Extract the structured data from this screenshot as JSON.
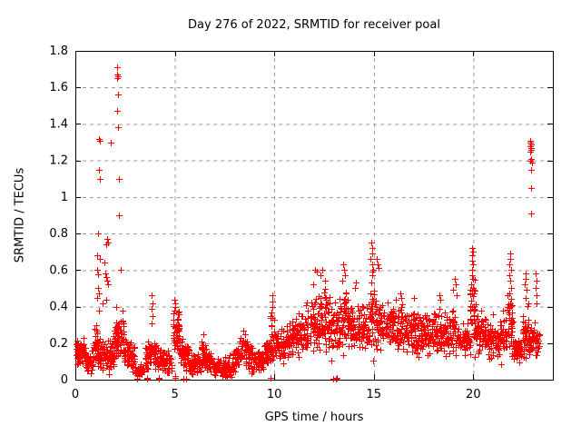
{
  "chart_data": {
    "type": "scatter",
    "title": "Day 276 of 2022, SRMTID for receiver poal",
    "xlabel": "GPS time / hours",
    "ylabel": "SRMTID / TECUs",
    "xlim": [
      0,
      24
    ],
    "ylim": [
      0,
      1.8
    ],
    "xticks": [
      0,
      5,
      10,
      15,
      20
    ],
    "xtick_labels": [
      "0",
      "5",
      "10",
      "15",
      "20"
    ],
    "yticks": [
      0,
      0.2,
      0.4,
      0.6,
      0.8,
      1.0,
      1.2,
      1.4,
      1.6,
      1.8
    ],
    "ytick_labels": [
      "0",
      "0.2",
      "0.4",
      "0.6",
      "0.8",
      "1",
      "1.2",
      "1.4",
      "1.6",
      "1.8"
    ],
    "grid": true,
    "grid_style": "dashed",
    "grid_color": "#9c9c9c",
    "frame_color": "#000000",
    "marker": "plus",
    "marker_color": "#ff0000",
    "seed": 1337,
    "bands_note": "dense scatter regions: [x_start, x_end, n_points, center_y_start, center_y_end, spread]",
    "bands": [
      [
        0.0,
        0.5,
        60,
        0.16,
        0.16,
        0.055
      ],
      [
        0.5,
        0.9,
        40,
        0.1,
        0.1,
        0.04
      ],
      [
        0.9,
        1.25,
        45,
        0.17,
        0.18,
        0.07
      ],
      [
        1.25,
        1.95,
        80,
        0.13,
        0.13,
        0.06
      ],
      [
        1.95,
        2.45,
        65,
        0.22,
        0.25,
        0.07
      ],
      [
        2.45,
        3.0,
        55,
        0.16,
        0.12,
        0.05
      ],
      [
        3.0,
        3.5,
        30,
        0.06,
        0.06,
        0.03
      ],
      [
        3.5,
        3.85,
        40,
        0.13,
        0.16,
        0.055
      ],
      [
        3.85,
        4.85,
        90,
        0.15,
        0.09,
        0.05
      ],
      [
        4.9,
        5.25,
        55,
        0.27,
        0.25,
        0.09
      ],
      [
        5.25,
        5.7,
        45,
        0.18,
        0.12,
        0.05
      ],
      [
        5.7,
        6.3,
        60,
        0.09,
        0.09,
        0.04
      ],
      [
        6.3,
        6.6,
        35,
        0.14,
        0.13,
        0.05
      ],
      [
        6.6,
        6.9,
        30,
        0.1,
        0.09,
        0.04
      ],
      [
        6.9,
        7.9,
        95,
        0.07,
        0.07,
        0.035
      ],
      [
        7.9,
        8.3,
        40,
        0.11,
        0.15,
        0.05
      ],
      [
        8.3,
        8.9,
        55,
        0.17,
        0.13,
        0.06
      ],
      [
        8.9,
        9.45,
        50,
        0.1,
        0.11,
        0.04
      ],
      [
        9.45,
        9.8,
        35,
        0.14,
        0.17,
        0.05
      ],
      [
        9.8,
        10.0,
        25,
        0.22,
        0.2,
        0.08
      ],
      [
        10.0,
        10.6,
        55,
        0.19,
        0.2,
        0.06
      ],
      [
        10.6,
        11.6,
        95,
        0.23,
        0.25,
        0.07
      ],
      [
        11.6,
        12.3,
        70,
        0.28,
        0.32,
        0.1
      ],
      [
        12.3,
        12.95,
        65,
        0.33,
        0.32,
        0.11
      ],
      [
        12.95,
        13.3,
        35,
        0.27,
        0.29,
        0.1
      ],
      [
        13.3,
        13.7,
        40,
        0.33,
        0.32,
        0.1
      ],
      [
        13.7,
        14.8,
        105,
        0.3,
        0.3,
        0.09
      ],
      [
        14.8,
        15.1,
        35,
        0.38,
        0.36,
        0.13
      ],
      [
        15.1,
        15.45,
        35,
        0.34,
        0.32,
        0.1
      ],
      [
        15.45,
        16.6,
        110,
        0.3,
        0.29,
        0.08
      ],
      [
        16.6,
        17.4,
        80,
        0.28,
        0.25,
        0.08
      ],
      [
        17.4,
        18.4,
        95,
        0.25,
        0.26,
        0.07
      ],
      [
        18.4,
        19.15,
        70,
        0.25,
        0.26,
        0.08
      ],
      [
        19.15,
        19.85,
        65,
        0.23,
        0.22,
        0.06
      ],
      [
        19.85,
        20.1,
        35,
        0.4,
        0.38,
        0.14
      ],
      [
        20.1,
        20.65,
        55,
        0.27,
        0.25,
        0.07
      ],
      [
        20.65,
        21.35,
        65,
        0.21,
        0.21,
        0.07
      ],
      [
        21.35,
        21.7,
        35,
        0.24,
        0.26,
        0.08
      ],
      [
        21.7,
        22.0,
        35,
        0.33,
        0.3,
        0.13
      ],
      [
        22.0,
        22.45,
        45,
        0.17,
        0.16,
        0.05
      ],
      [
        22.45,
        22.8,
        40,
        0.24,
        0.25,
        0.1
      ],
      [
        22.8,
        23.3,
        55,
        0.21,
        0.22,
        0.07
      ]
    ],
    "points_note": "notable individual points / spikes [x, y]",
    "points": [
      [
        2.12,
        1.71
      ],
      [
        2.1,
        1.67
      ],
      [
        2.14,
        1.66
      ],
      [
        2.12,
        1.65
      ],
      [
        2.13,
        1.56
      ],
      [
        2.12,
        1.47
      ],
      [
        2.13,
        1.38
      ],
      [
        1.18,
        1.32
      ],
      [
        1.24,
        1.31
      ],
      [
        1.8,
        1.3
      ],
      [
        1.2,
        1.15
      ],
      [
        1.21,
        1.1
      ],
      [
        2.2,
        1.1
      ],
      [
        2.2,
        0.9
      ],
      [
        1.13,
        0.8
      ],
      [
        1.58,
        0.77
      ],
      [
        1.62,
        0.75
      ],
      [
        1.55,
        0.74
      ],
      [
        1.1,
        0.68
      ],
      [
        1.25,
        0.66
      ],
      [
        1.45,
        0.64
      ],
      [
        2.28,
        0.6
      ],
      [
        1.09,
        0.6
      ],
      [
        1.12,
        0.575
      ],
      [
        1.5,
        0.58
      ],
      [
        1.55,
        0.56
      ],
      [
        1.6,
        0.54
      ],
      [
        1.65,
        0.52
      ],
      [
        1.15,
        0.5
      ],
      [
        1.2,
        0.47
      ],
      [
        1.08,
        0.45
      ],
      [
        1.55,
        0.44
      ],
      [
        1.35,
        0.42
      ],
      [
        2.05,
        0.4
      ],
      [
        1.18,
        0.38
      ],
      [
        2.35,
        0.38
      ],
      [
        3.85,
        0.46
      ],
      [
        3.86,
        0.42
      ],
      [
        3.84,
        0.39
      ],
      [
        3.87,
        0.35
      ],
      [
        3.85,
        0.31
      ],
      [
        4.98,
        0.44
      ],
      [
        5.0,
        0.42
      ],
      [
        5.03,
        0.4
      ],
      [
        4.96,
        0.38
      ],
      [
        5.15,
        0.37
      ],
      [
        6.45,
        0.25
      ],
      [
        8.45,
        0.27
      ],
      [
        8.55,
        0.25
      ],
      [
        9.9,
        0.46
      ],
      [
        9.88,
        0.43
      ],
      [
        9.92,
        0.4
      ],
      [
        9.87,
        0.37
      ],
      [
        9.9,
        0.34
      ],
      [
        12.05,
        0.6
      ],
      [
        12.15,
        0.59
      ],
      [
        12.3,
        0.57
      ],
      [
        12.4,
        0.6
      ],
      [
        11.95,
        0.52
      ],
      [
        12.55,
        0.54
      ],
      [
        13.45,
        0.63
      ],
      [
        13.5,
        0.6
      ],
      [
        13.55,
        0.57
      ],
      [
        13.4,
        0.54
      ],
      [
        14.1,
        0.53
      ],
      [
        14.05,
        0.5
      ],
      [
        14.88,
        0.75
      ],
      [
        14.9,
        0.72
      ],
      [
        14.93,
        0.69
      ],
      [
        14.85,
        0.66
      ],
      [
        14.9,
        0.63
      ],
      [
        14.95,
        0.6
      ],
      [
        14.9,
        0.57
      ],
      [
        14.87,
        0.53
      ],
      [
        15.15,
        0.66
      ],
      [
        15.2,
        0.63
      ],
      [
        15.25,
        0.61
      ],
      [
        16.1,
        0.44
      ],
      [
        16.35,
        0.47
      ],
      [
        16.4,
        0.45
      ],
      [
        17.0,
        0.45
      ],
      [
        18.3,
        0.46
      ],
      [
        18.35,
        0.44
      ],
      [
        19.05,
        0.55
      ],
      [
        19.1,
        0.52
      ],
      [
        19.0,
        0.49
      ],
      [
        19.15,
        0.46
      ],
      [
        19.95,
        0.72
      ],
      [
        19.97,
        0.7
      ],
      [
        19.93,
        0.68
      ],
      [
        19.95,
        0.65
      ],
      [
        19.98,
        0.63
      ],
      [
        19.92,
        0.6
      ],
      [
        19.95,
        0.57
      ],
      [
        19.97,
        0.55
      ],
      [
        19.9,
        0.52
      ],
      [
        20.0,
        0.5
      ],
      [
        19.95,
        0.47
      ],
      [
        20.4,
        0.38
      ],
      [
        21.0,
        0.36
      ],
      [
        21.85,
        0.69
      ],
      [
        21.87,
        0.66
      ],
      [
        21.83,
        0.63
      ],
      [
        21.9,
        0.6
      ],
      [
        21.8,
        0.57
      ],
      [
        21.85,
        0.54
      ],
      [
        21.88,
        0.5
      ],
      [
        21.82,
        0.47
      ],
      [
        22.62,
        0.58
      ],
      [
        22.65,
        0.55
      ],
      [
        22.6,
        0.52
      ],
      [
        22.67,
        0.49
      ],
      [
        22.63,
        0.45
      ],
      [
        22.85,
        1.31
      ],
      [
        22.88,
        1.3
      ],
      [
        22.92,
        1.29
      ],
      [
        22.86,
        1.28
      ],
      [
        22.9,
        1.27
      ],
      [
        22.89,
        1.26
      ],
      [
        22.87,
        1.25
      ],
      [
        22.91,
        1.21
      ],
      [
        22.88,
        1.2
      ],
      [
        22.93,
        1.19
      ],
      [
        22.9,
        1.15
      ],
      [
        22.9,
        1.05
      ],
      [
        22.9,
        0.91
      ],
      [
        23.15,
        0.58
      ],
      [
        23.17,
        0.54
      ],
      [
        23.13,
        0.5
      ],
      [
        23.16,
        0.46
      ],
      [
        23.19,
        0.42
      ],
      [
        3.08,
        0.005
      ],
      [
        3.12,
        0.005
      ],
      [
        3.6,
        0.005
      ],
      [
        3.62,
        0.012
      ],
      [
        4.18,
        0.005
      ],
      [
        4.2,
        0.012
      ],
      [
        5.0,
        0.012
      ],
      [
        5.02,
        0.02
      ],
      [
        5.45,
        0.005
      ],
      [
        5.55,
        0.005
      ],
      [
        9.8,
        0.012
      ],
      [
        12.98,
        0.005
      ],
      [
        13.1,
        0.005
      ],
      [
        13.12,
        0.012
      ]
    ]
  }
}
